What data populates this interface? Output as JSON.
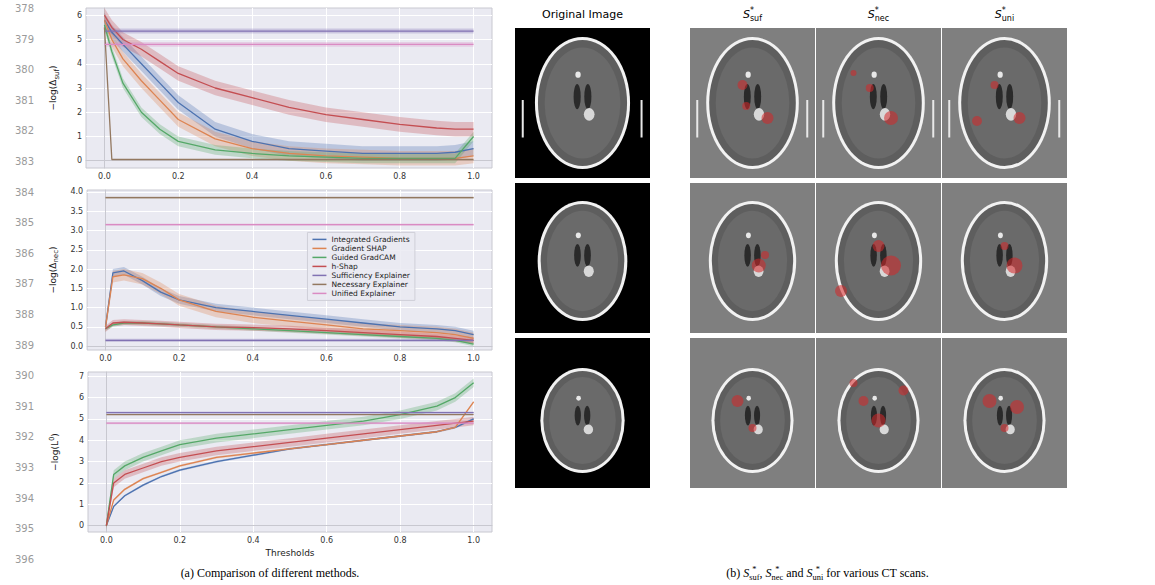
{
  "line_numbers": [
    378,
    379,
    380,
    381,
    382,
    383,
    384,
    385,
    386,
    387,
    388,
    389,
    390,
    391,
    392,
    393,
    394,
    395,
    396
  ],
  "chart_data": [
    {
      "type": "line",
      "ylabel": {
        "main": "−log(Δ",
        "sub": "suf",
        "end": ")"
      },
      "x": [
        0,
        0.02,
        0.05,
        0.1,
        0.15,
        0.2,
        0.3,
        0.4,
        0.5,
        0.6,
        0.7,
        0.8,
        0.9,
        0.95,
        1.0
      ],
      "xlim": [
        -0.05,
        1.05
      ],
      "xticks": [
        {
          "value": 0,
          "label": "0.0"
        },
        {
          "value": 0.2,
          "label": "0.2"
        },
        {
          "value": 0.4,
          "label": "0.4"
        },
        {
          "value": 0.6,
          "label": "0.6"
        },
        {
          "value": 0.8,
          "label": "0.8"
        },
        {
          "value": 1.0,
          "label": "1.0"
        }
      ],
      "ylim": [
        -0.3,
        6.3
      ],
      "yticks": [
        0,
        1,
        2,
        3,
        4,
        5,
        6
      ],
      "grid": true,
      "series": [
        {
          "name": "Integrated Gradients",
          "color": "#4c72b0",
          "spread": 0.3,
          "values": [
            5.8,
            5.3,
            4.8,
            4.0,
            3.2,
            2.4,
            1.3,
            0.8,
            0.5,
            0.4,
            0.3,
            0.3,
            0.3,
            0.35,
            0.5
          ]
        },
        {
          "name": "Gradient SHAP",
          "color": "#dd8452",
          "spread": 0.3,
          "values": [
            5.8,
            5.0,
            4.2,
            3.3,
            2.5,
            1.7,
            0.9,
            0.5,
            0.3,
            0.2,
            0.15,
            0.1,
            0.1,
            0.1,
            0.2
          ]
        },
        {
          "name": "Guided GradCAM",
          "color": "#55a868",
          "spread": 0.2,
          "values": [
            5.6,
            4.5,
            3.2,
            2.0,
            1.3,
            0.8,
            0.45,
            0.3,
            0.2,
            0.15,
            0.1,
            0.1,
            0.1,
            0.1,
            1.0
          ]
        },
        {
          "name": "h-Shap",
          "color": "#c44e52",
          "spread": 0.3,
          "values": [
            6.0,
            5.5,
            5.0,
            4.6,
            4.1,
            3.6,
            3.0,
            2.6,
            2.2,
            1.9,
            1.7,
            1.5,
            1.35,
            1.3,
            1.3
          ]
        },
        {
          "name": "Sufficiency Explainer",
          "color": "#8172b3",
          "spread": 0.1,
          "values": [
            5.35,
            5.35,
            5.35,
            5.35,
            5.35,
            5.35,
            5.35,
            5.35,
            5.35,
            5.35,
            5.35,
            5.35,
            5.35,
            5.35,
            5.35
          ]
        },
        {
          "name": "Necessary Explainer",
          "color": "#937860",
          "spread": 0,
          "values": [
            5.5,
            0.05,
            0.05,
            0.05,
            0.05,
            0.05,
            0.05,
            0.05,
            0.05,
            0.05,
            0.05,
            0.05,
            0.05,
            0.05,
            0.05
          ]
        },
        {
          "name": "Unified Explainer",
          "color": "#da8bc3",
          "spread": 0.1,
          "values": [
            4.8,
            4.8,
            4.8,
            4.8,
            4.8,
            4.8,
            4.8,
            4.8,
            4.8,
            4.8,
            4.8,
            4.8,
            4.8,
            4.8,
            4.8
          ]
        }
      ]
    },
    {
      "type": "line",
      "ylabel": {
        "main": "−log(Δ",
        "sub": "nec",
        "end": ")"
      },
      "x": [
        0,
        0.02,
        0.05,
        0.1,
        0.15,
        0.2,
        0.3,
        0.4,
        0.5,
        0.6,
        0.7,
        0.8,
        0.9,
        0.95,
        1.0
      ],
      "xlim": [
        -0.05,
        1.05
      ],
      "xticks": [
        {
          "value": 0,
          "label": "0.0"
        },
        {
          "value": 0.2,
          "label": "0.2"
        },
        {
          "value": 0.4,
          "label": "0.4"
        },
        {
          "value": 0.6,
          "label": "0.6"
        },
        {
          "value": 0.8,
          "label": "0.8"
        },
        {
          "value": 1.0,
          "label": "1.0"
        }
      ],
      "ylim": [
        -0.1,
        4.05
      ],
      "yticks": [
        {
          "value": 0,
          "label": "0.0"
        },
        {
          "value": 0.5,
          "label": "0.5"
        },
        {
          "value": 1.0,
          "label": "1.0"
        },
        {
          "value": 1.5,
          "label": "1.5"
        },
        {
          "value": 2.0,
          "label": "2.0"
        },
        {
          "value": 2.5,
          "label": "2.5"
        },
        {
          "value": 3.0,
          "label": "3.0"
        },
        {
          "value": 3.5,
          "label": "3.5"
        },
        {
          "value": 4.0,
          "label": "4.0"
        }
      ],
      "grid": true,
      "legend": "right",
      "series": [
        {
          "name": "Integrated Gradients",
          "color": "#4c72b0",
          "spread": 0.1,
          "values": [
            0.5,
            1.9,
            1.95,
            1.7,
            1.4,
            1.2,
            1.0,
            0.9,
            0.8,
            0.7,
            0.6,
            0.5,
            0.45,
            0.4,
            0.3
          ]
        },
        {
          "name": "Gradient SHAP",
          "color": "#dd8452",
          "spread": 0.15,
          "values": [
            0.5,
            1.8,
            1.85,
            1.75,
            1.5,
            1.2,
            0.9,
            0.75,
            0.65,
            0.55,
            0.45,
            0.4,
            0.35,
            0.3,
            0.2
          ]
        },
        {
          "name": "Guided GradCAM",
          "color": "#55a868",
          "spread": 0.05,
          "values": [
            0.45,
            0.55,
            0.6,
            0.6,
            0.58,
            0.55,
            0.5,
            0.45,
            0.4,
            0.35,
            0.3,
            0.25,
            0.2,
            0.15,
            0.05
          ]
        },
        {
          "name": "h-Shap",
          "color": "#c44e52",
          "spread": 0.08,
          "values": [
            0.45,
            0.6,
            0.62,
            0.6,
            0.58,
            0.55,
            0.5,
            0.48,
            0.45,
            0.4,
            0.35,
            0.3,
            0.25,
            0.2,
            0.15
          ]
        },
        {
          "name": "Sufficiency Explainer",
          "color": "#8172b3",
          "spread": 0.04,
          "values": [
            0.15,
            0.15,
            0.15,
            0.15,
            0.15,
            0.15,
            0.15,
            0.15,
            0.15,
            0.15,
            0.15,
            0.15,
            0.15,
            0.15,
            0.15
          ]
        },
        {
          "name": "Necessary Explainer",
          "color": "#937860",
          "spread": 0.03,
          "values": [
            3.85,
            3.85,
            3.85,
            3.85,
            3.85,
            3.85,
            3.85,
            3.85,
            3.85,
            3.85,
            3.85,
            3.85,
            3.85,
            3.85,
            3.85
          ]
        },
        {
          "name": "Unified Explainer",
          "color": "#da8bc3",
          "spread": 0.03,
          "values": [
            3.15,
            3.15,
            3.15,
            3.15,
            3.15,
            3.15,
            3.15,
            3.15,
            3.15,
            3.15,
            3.15,
            3.15,
            3.15,
            3.15,
            3.15
          ]
        }
      ]
    },
    {
      "type": "line",
      "ylabel": {
        "main": "−log(L",
        "sup": "0",
        "end": ")"
      },
      "xlabel": "Thresholds",
      "x": [
        0,
        0.02,
        0.05,
        0.1,
        0.15,
        0.2,
        0.3,
        0.4,
        0.5,
        0.6,
        0.7,
        0.8,
        0.9,
        0.95,
        1.0
      ],
      "xlim": [
        -0.05,
        1.05
      ],
      "xticks": [
        {
          "value": 0,
          "label": "0.0"
        },
        {
          "value": 0.2,
          "label": "0.2"
        },
        {
          "value": 0.4,
          "label": "0.4"
        },
        {
          "value": 0.6,
          "label": "0.6"
        },
        {
          "value": 0.8,
          "label": "0.8"
        },
        {
          "value": 1.0,
          "label": "1.0"
        }
      ],
      "ylim": [
        -0.3,
        7.2
      ],
      "yticks": [
        0,
        1,
        2,
        3,
        4,
        5,
        6,
        7
      ],
      "grid": true,
      "series": [
        {
          "name": "Integrated Gradients",
          "color": "#4c72b0",
          "spread": 0.05,
          "values": [
            0,
            0.9,
            1.4,
            1.9,
            2.3,
            2.6,
            3.0,
            3.3,
            3.6,
            3.8,
            4.0,
            4.2,
            4.4,
            4.6,
            5.0
          ]
        },
        {
          "name": "Gradient SHAP",
          "color": "#dd8452",
          "spread": 0.05,
          "values": [
            0,
            1.2,
            1.7,
            2.2,
            2.5,
            2.8,
            3.2,
            3.4,
            3.6,
            3.8,
            4.0,
            4.2,
            4.4,
            4.6,
            5.8
          ]
        },
        {
          "name": "Guided GradCAM",
          "color": "#55a868",
          "spread": 0.2,
          "values": [
            0,
            2.4,
            2.8,
            3.2,
            3.5,
            3.8,
            4.1,
            4.3,
            4.5,
            4.7,
            4.9,
            5.2,
            5.6,
            6.0,
            6.7
          ]
        },
        {
          "name": "h-Shap",
          "color": "#c44e52",
          "spread": 0.2,
          "values": [
            0,
            2.0,
            2.4,
            2.7,
            3.0,
            3.2,
            3.5,
            3.7,
            3.9,
            4.1,
            4.3,
            4.5,
            4.7,
            4.8,
            4.9
          ]
        },
        {
          "name": "Sufficiency Explainer",
          "color": "#8172b3",
          "spread": 0.05,
          "values": [
            5.3,
            5.3,
            5.3,
            5.3,
            5.3,
            5.3,
            5.3,
            5.3,
            5.3,
            5.3,
            5.3,
            5.3,
            5.3,
            5.3,
            5.3
          ]
        },
        {
          "name": "Necessary Explainer",
          "color": "#937860",
          "spread": 0,
          "values": [
            5.2,
            5.2,
            5.2,
            5.2,
            5.2,
            5.2,
            5.2,
            5.2,
            5.2,
            5.2,
            5.2,
            5.2,
            5.2,
            5.2,
            5.2
          ]
        },
        {
          "name": "Unified Explainer",
          "color": "#da8bc3",
          "spread": 0.05,
          "values": [
            4.8,
            4.8,
            4.8,
            4.8,
            4.8,
            4.8,
            4.8,
            4.8,
            4.8,
            4.8,
            4.8,
            4.8,
            4.8,
            4.8,
            4.8
          ]
        }
      ]
    }
  ],
  "caption_a": "(a)  Comparison of different methods.",
  "column_heads": [
    "Original Image",
    {
      "base": "S",
      "sup": "*",
      "sub": "suf"
    },
    {
      "base": "S",
      "sup": "*",
      "sub": "nec"
    },
    {
      "base": "S",
      "sup": "*",
      "sub": "uni"
    }
  ],
  "caption_b": {
    "prefix": "(b)  ",
    "items": [
      {
        "base": "S",
        "sup": "*",
        "sub": "suf"
      },
      {
        "base": "S",
        "sup": "*",
        "sub": "nec"
      },
      {
        "base": "S",
        "sup": "*",
        "sub": "uni"
      }
    ],
    "joins": [
      ",  ",
      " and "
    ],
    "suffix": " for various CT scans."
  }
}
